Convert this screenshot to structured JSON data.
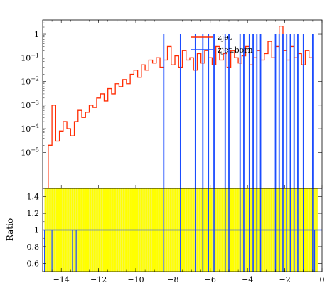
{
  "chart_data": [
    {
      "type": "line",
      "panel": "main",
      "title": "",
      "xlabel": "",
      "ylabel": "",
      "xlim": [
        -15,
        0
      ],
      "ylim": [
        3e-07,
        4
      ],
      "yscale": "log",
      "x_ticks_major": [
        -14,
        -12,
        -10,
        -8,
        -6,
        -4,
        -2,
        0
      ],
      "y_ticks": [
        {
          "value": 1e-05,
          "label": "10^{-5}"
        },
        {
          "value": 0.0001,
          "label": "10^{-4}"
        },
        {
          "value": 0.001,
          "label": "10^{-3}"
        },
        {
          "value": 0.01,
          "label": "10^{-2}"
        },
        {
          "value": 0.1,
          "label": "10^{-1}"
        },
        {
          "value": 1,
          "label": "1"
        }
      ],
      "legend_position": "top-right",
      "grid": false,
      "series": [
        {
          "name": "zjet",
          "color": "#ff2a00",
          "style": "histogram",
          "x": [
            -14.6,
            -14.4,
            -14.2,
            -14.0,
            -13.8,
            -13.6,
            -13.4,
            -13.2,
            -13.0,
            -12.8,
            -12.6,
            -12.4,
            -12.2,
            -12.0,
            -11.8,
            -11.6,
            -11.4,
            -11.2,
            -11.0,
            -10.8,
            -10.6,
            -10.4,
            -10.2,
            -10.0,
            -9.8,
            -9.6,
            -9.4,
            -9.2,
            -9.0,
            -8.8,
            -8.6,
            -8.4,
            -8.2,
            -8.0,
            -7.8,
            -7.6,
            -7.4,
            -7.2,
            -7.0,
            -6.8,
            -6.6,
            -6.4,
            -6.2,
            -6.0,
            -5.8,
            -5.6,
            -5.4,
            -5.2,
            -5.0,
            -4.8,
            -4.6,
            -4.4,
            -4.2,
            -4.0,
            -3.8,
            -3.6,
            -3.4,
            -3.2,
            -3.0,
            -2.8,
            -2.6,
            -2.4,
            -2.2,
            -2.0,
            -1.8,
            -1.6,
            -1.4,
            -1.2,
            -1.0,
            -0.8,
            -0.6
          ],
          "y": [
            2e-05,
            0.001,
            3e-05,
            8e-05,
            0.0002,
            0.0001,
            5e-05,
            0.0002,
            0.0006,
            0.0003,
            0.0005,
            0.001,
            0.0008,
            0.002,
            0.003,
            0.0015,
            0.005,
            0.003,
            0.008,
            0.006,
            0.012,
            0.008,
            0.02,
            0.03,
            0.015,
            0.05,
            0.03,
            0.08,
            0.06,
            0.1,
            0.04,
            0.08,
            0.3,
            0.05,
            0.12,
            0.04,
            0.2,
            0.08,
            0.1,
            0.03,
            0.15,
            0.06,
            0.2,
            0.1,
            0.05,
            0.3,
            0.08,
            0.15,
            0.04,
            0.2,
            0.1,
            0.06,
            0.12,
            0.3,
            0.05,
            0.1,
            0.2,
            0.08,
            0.15,
            0.5,
            0.1,
            0.3,
            2.2,
            0.2,
            0.08,
            0.3,
            0.1,
            0.15,
            0.05,
            0.2,
            0.1
          ]
        },
        {
          "name": "zjet.born",
          "color": "#1a4cff",
          "style": "histogram",
          "x": [
            -8.5,
            -7.6,
            -6.8,
            -6.4,
            -6.1,
            -5.8,
            -5.2,
            -5.0,
            -4.4,
            -4.2,
            -3.9,
            -3.7,
            -3.5,
            -3.3,
            -2.5,
            -2.3,
            -2.1,
            -1.9,
            -1.7,
            -1.5,
            -1.3,
            -1.0,
            -0.5
          ],
          "y": [
            1,
            1,
            1,
            1,
            1,
            1,
            1,
            1,
            1,
            1,
            1,
            1,
            1,
            1,
            1,
            1,
            1,
            1,
            1,
            1,
            1,
            1,
            1
          ]
        }
      ]
    },
    {
      "type": "line",
      "panel": "ratio",
      "title": "",
      "xlabel": "",
      "ylabel": "Ratio",
      "xlim": [
        -15,
        0
      ],
      "ylim": [
        0.5,
        1.5
      ],
      "x_ticks": [
        -14,
        -12,
        -10,
        -8,
        -6,
        -4,
        -2,
        0
      ],
      "y_ticks": [
        0.6,
        0.8,
        1,
        1.2,
        1.4
      ],
      "band": {
        "color": "#ffff00",
        "lower": 0.5,
        "upper": 1.5,
        "x_range": [
          -14.9,
          -0.2
        ]
      },
      "reference_line": 1
    }
  ]
}
